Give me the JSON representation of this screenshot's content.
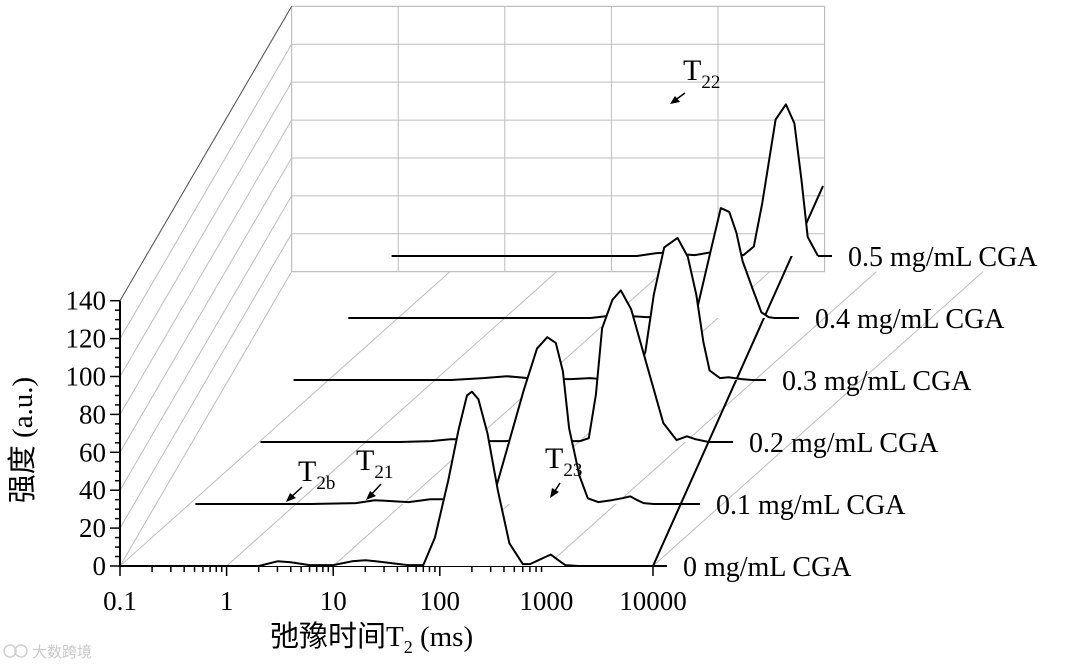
{
  "chart_data": {
    "type": "line",
    "subtype": "3d-waterfall",
    "xlabel_main": "弛豫时间T",
    "xlabel_sub": "2",
    "xlabel_unit": " (ms)",
    "ylabel": "强度 (a.u.)",
    "x_scale": "log",
    "xlim": [
      0.1,
      10000
    ],
    "ylim": [
      0,
      140
    ],
    "x_ticks": [
      "0.1",
      "1",
      "10",
      "100",
      "1000",
      "10000"
    ],
    "y_ticks": [
      "0",
      "20",
      "40",
      "60",
      "80",
      "100",
      "120",
      "140"
    ],
    "grid": true,
    "series": [
      {
        "name": "0 mg/mL CGA",
        "x": [
          0.25,
          2,
          3,
          4,
          6,
          10,
          15,
          20,
          25,
          30,
          50,
          70,
          90,
          120,
          150,
          180,
          200,
          230,
          280,
          350,
          450,
          600,
          700,
          800,
          1000,
          1100,
          1300,
          1500,
          2000,
          10000
        ],
        "y": [
          0,
          0,
          2.5,
          2,
          0.5,
          0.5,
          2.5,
          3,
          2.5,
          2,
          0.5,
          0.5,
          15,
          45,
          72,
          90,
          92,
          88,
          70,
          40,
          12,
          1,
          1,
          2.5,
          5,
          6,
          3,
          0.5,
          0,
          0
        ]
      },
      {
        "name": "0.1 mg/mL CGA",
        "x": [
          0.25,
          3,
          8,
          12,
          18,
          25,
          40,
          60,
          80,
          100,
          150,
          200,
          300,
          400,
          500,
          600,
          700,
          800,
          1000,
          1200,
          1500,
          2000,
          2500,
          3000,
          3500,
          4000,
          5000,
          10000
        ],
        "y": [
          0,
          0,
          0.5,
          2,
          1.5,
          1,
          2.5,
          2.5,
          1,
          0.5,
          0.5,
          25,
          60,
          82,
          88,
          85,
          70,
          40,
          15,
          3,
          1,
          2,
          3,
          4,
          2,
          0.5,
          0,
          0
        ]
      },
      {
        "name": "0.2 mg/mL CGA",
        "x": [
          0.5,
          10,
          20,
          30,
          50,
          70,
          100,
          150,
          200,
          300,
          400,
          500,
          600,
          700,
          800,
          1000,
          1200,
          1500,
          2000,
          3000,
          4000,
          5000,
          6000,
          8000,
          10000
        ],
        "y": [
          0,
          0,
          0.5,
          1.5,
          1.5,
          0.5,
          0.5,
          1,
          1.5,
          1.5,
          0.5,
          0.5,
          2,
          25,
          60,
          75,
          80,
          70,
          45,
          10,
          1,
          3,
          1.5,
          0,
          0
        ]
      },
      {
        "name": "0.3 mg/mL CGA",
        "x": [
          0.5,
          15,
          30,
          50,
          80,
          100,
          200,
          300,
          400,
          600,
          800,
          1000,
          1200,
          1500,
          2000,
          2500,
          3000,
          3500,
          4000,
          5000,
          6000,
          8000,
          10000
        ],
        "y": [
          0,
          0,
          1,
          2,
          1,
          0.5,
          0.5,
          1,
          0.5,
          0.5,
          0.5,
          15,
          45,
          70,
          75,
          65,
          45,
          20,
          5,
          1,
          1.5,
          0.5,
          0
        ]
      },
      {
        "name": "0.4 mg/mL CGA",
        "x": [
          0.8,
          150,
          250,
          350,
          500,
          800,
          1000,
          1200,
          1500,
          2000,
          2500,
          3000,
          3500,
          4000,
          5000,
          6000,
          7000,
          8000,
          10000
        ],
        "y": [
          0,
          0,
          1.5,
          1,
          0.5,
          0.5,
          2,
          1.5,
          5,
          35,
          58,
          56,
          45,
          30,
          15,
          3,
          0.5,
          0,
          0
        ]
      },
      {
        "name": "0.5 mg/mL CGA",
        "x": [
          1,
          200,
          300,
          400,
          500,
          700,
          1000,
          1500,
          2000,
          2500,
          3000,
          4000,
          5000,
          6000,
          7000,
          8000,
          10000
        ],
        "y": [
          0,
          0,
          1.5,
          2,
          1,
          0.5,
          2,
          1,
          0.5,
          5,
          28,
          72,
          80,
          70,
          40,
          10,
          0
        ]
      }
    ]
  },
  "annotations": {
    "t2b": {
      "main": "T",
      "sub": "2b"
    },
    "t21": {
      "main": "T",
      "sub": "21"
    },
    "t23": {
      "main": "T",
      "sub": "23"
    },
    "t22": {
      "main": "T",
      "sub": "22"
    }
  },
  "watermark": "大数跨境"
}
